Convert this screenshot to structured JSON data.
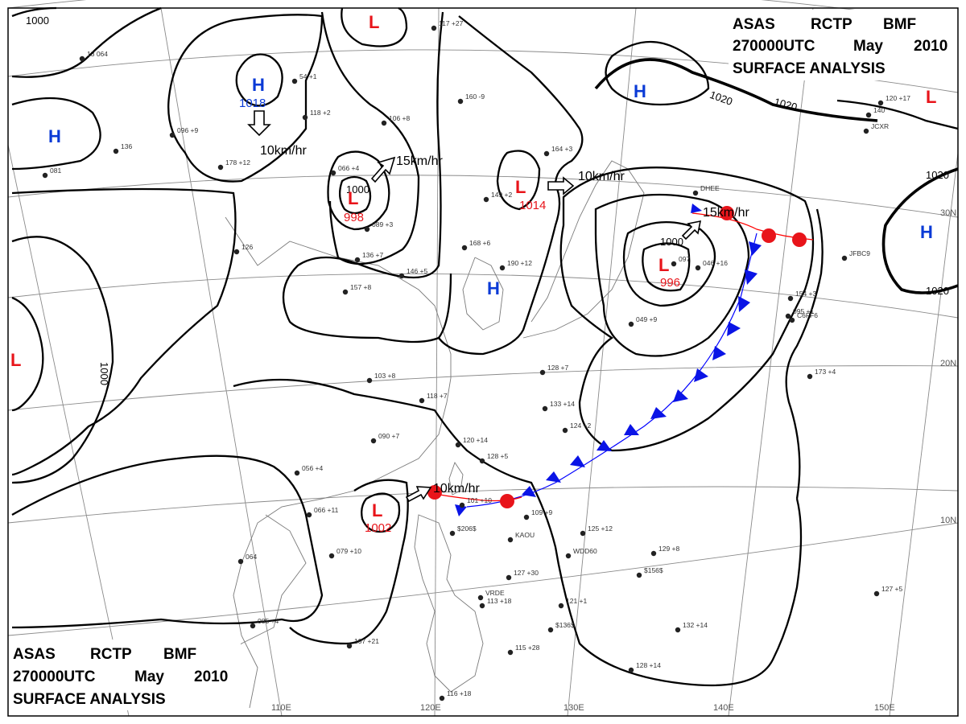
{
  "header_top": {
    "line1": [
      "ASAS",
      "RCTP",
      "BMF"
    ],
    "line2": [
      "270000UTC",
      "May",
      "2010"
    ],
    "line3": "SURFACE ANALYSIS"
  },
  "header_bottom": {
    "line1": [
      "ASAS",
      "RCTP",
      "BMF"
    ],
    "line2": [
      "270000UTC",
      "May",
      "2010"
    ],
    "line3": "SURFACE ANALYSIS"
  },
  "longitude_labels": [
    "110E",
    "120E",
    "130E",
    "140E",
    "150E"
  ],
  "latitude_labels": [
    "30N",
    "20N",
    "10N"
  ],
  "colors": {
    "low": "#e8141a",
    "high": "#0a3ad6",
    "isobar": "#000000",
    "warm_front": "#e8141a",
    "cold_front": "#0a14e6",
    "grid": "#8a8a8a"
  },
  "pressure_centers": [
    {
      "type": "H",
      "value": "1018"
    },
    {
      "type": "H",
      "value": ""
    },
    {
      "type": "H",
      "value": ""
    },
    {
      "type": "H",
      "value": ""
    },
    {
      "type": "H",
      "value": ""
    },
    {
      "type": "L",
      "value": "998"
    },
    {
      "type": "L",
      "value": "1014"
    },
    {
      "type": "L",
      "value": "996"
    },
    {
      "type": "L",
      "value": "1002"
    },
    {
      "type": "L",
      "value": ""
    },
    {
      "type": "L",
      "value": ""
    },
    {
      "type": "L",
      "value": ""
    }
  ],
  "isobar_labels": [
    "1000",
    "1000",
    "1000",
    "1000",
    "1020",
    "1020",
    "1020",
    "1020"
  ],
  "motion_vectors": [
    {
      "label": "10km/hr"
    },
    {
      "label": "15km/hr"
    },
    {
      "label": "10km/hr"
    },
    {
      "label": "15km/hr"
    },
    {
      "label": "10km/hr"
    }
  ],
  "station_reports": [
    "13 064",
    "136",
    "081",
    "096 +9",
    "178 +12",
    "54 +1",
    "118 +2",
    "066 +4",
    "089 +3",
    "106 +8",
    "117 +27",
    "160 -9",
    "164 +3",
    "149 +2",
    "168 +6",
    "190 +12",
    "146 +5",
    "136 +7",
    "157 +8",
    "126",
    "097",
    "049 +9",
    "046 +16",
    "154 +3",
    "173 +4",
    "095 +1",
    "103 +8",
    "118 +7",
    "120 +14",
    "128 +5",
    "090 +7",
    "056 +4",
    "066 +11",
    "079 +10",
    "064",
    "085 +4",
    "101 +10",
    "109 +9",
    "125 +12",
    "129 +8",
    "127 +30",
    "121 +1",
    "132 +14",
    "128 +14",
    "127 +5",
    "113 +18",
    "115 +28",
    "107 +21",
    "116 +18",
    "124 +2",
    "133 +14",
    "128 +7",
    "140",
    "120 +17",
    "DHEE",
    "KAOU",
    "WDD60",
    "VRDE",
    "$206$",
    "$156$",
    "$136$",
    "JFBC9",
    "C6FF6",
    "JCXR"
  ]
}
